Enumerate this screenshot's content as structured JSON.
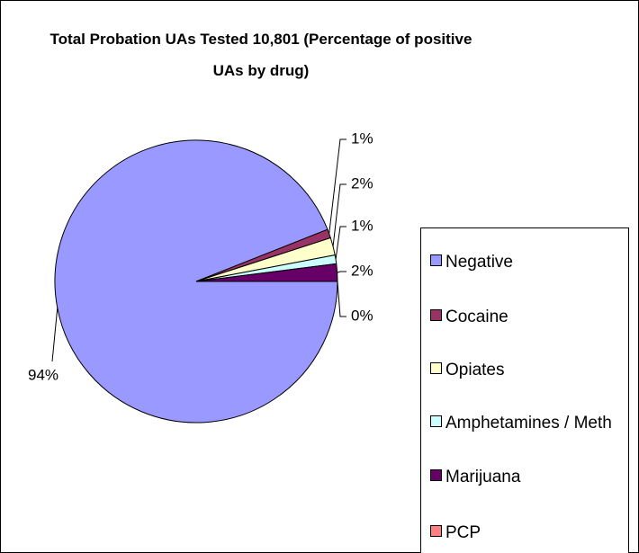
{
  "chart_data": {
    "type": "pie",
    "title": "Total Probation UAs Tested 10,801 (Percentage of positive UAs by drug)",
    "categories": [
      "Negative",
      "Cocaine",
      "Opiates",
      "Amphetamines / Meth",
      "Marijuana",
      "PCP"
    ],
    "values": [
      94,
      1,
      2,
      1,
      2,
      0
    ],
    "value_labels": [
      "94%",
      "1%",
      "2%",
      "1%",
      "2%",
      "0%"
    ],
    "colors": [
      "#9999ff",
      "#993366",
      "#ffffcc",
      "#ccffff",
      "#660066",
      "#ff8080"
    ]
  }
}
